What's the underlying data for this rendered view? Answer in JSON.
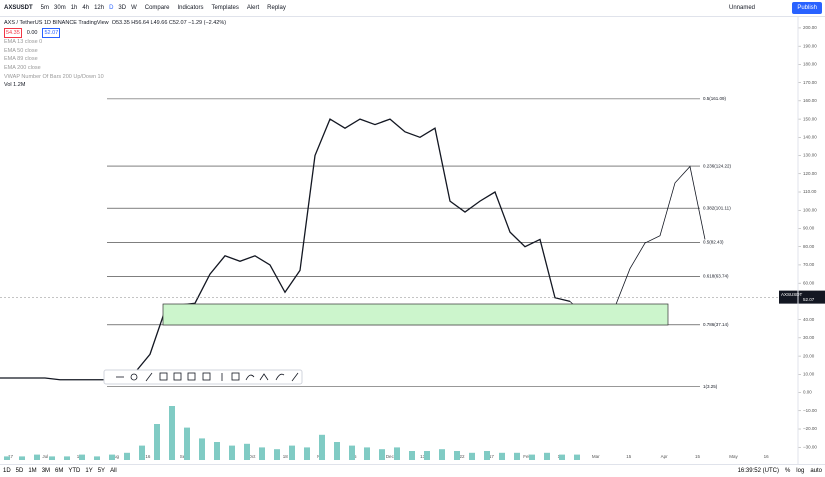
{
  "toolbar": {
    "symbol": "AXSUSDT",
    "intervals": [
      "5m",
      "30m",
      "1h",
      "4h",
      "12h",
      "D",
      "3D",
      "W"
    ],
    "compare": "Compare",
    "indicators": "Indicators",
    "templates": "Templates",
    "alert": "Alert",
    "replay": "Replay",
    "layout": "Unnamed",
    "publish": "Publish"
  },
  "legend": {
    "title": "AXS / TetherUS  1D  BINANCE  TradingView",
    "ohlc": "O53.35 H56.64 L49.66 C52.07 −1.29 (−2.42%)",
    "chips": [
      "54.35",
      "0.00",
      "52.07"
    ],
    "indicators": [
      "EMA 13 close 0",
      "EMA 50 close",
      "EMA 89 close",
      "EMA 200 close",
      "VWAP Number Of Bars 200 Up/Down 10"
    ],
    "volume": "Vol 1.2M"
  },
  "chart_data": {
    "type": "line",
    "ylim": [
      -37,
      206
    ],
    "yticks": [
      {
        "value": 200,
        "label": "200.00"
      },
      {
        "value": 190,
        "label": "190.00"
      },
      {
        "value": 180,
        "label": "180.00"
      },
      {
        "value": 170,
        "label": "170.00"
      },
      {
        "value": 160,
        "label": "160.00"
      },
      {
        "value": 150,
        "label": "150.00"
      },
      {
        "value": 140,
        "label": "140.00"
      },
      {
        "value": 130,
        "label": "130.00"
      },
      {
        "value": 120,
        "label": "120.00"
      },
      {
        "value": 110,
        "label": "110.00"
      },
      {
        "value": 100,
        "label": "100.00"
      },
      {
        "value": 90,
        "label": "90.00"
      },
      {
        "value": 80,
        "label": "80.00"
      },
      {
        "value": 70,
        "label": "70.00"
      },
      {
        "value": 60,
        "label": "60.00"
      },
      {
        "value": 50,
        "label": "50.00"
      },
      {
        "value": 40,
        "label": "40.00"
      },
      {
        "value": 30,
        "label": "30.00"
      },
      {
        "value": 20,
        "label": "20.00"
      },
      {
        "value": 10,
        "label": "10.00"
      },
      {
        "value": 0,
        "label": "0.00"
      },
      {
        "value": -10,
        "label": "−10.00"
      },
      {
        "value": -20,
        "label": "−20.00"
      },
      {
        "value": -30,
        "label": "−30.00"
      }
    ],
    "xlabels": [
      "17",
      "Jul",
      "15",
      "Aug",
      "16",
      "Sep",
      "16",
      "Oct",
      "18",
      "Nov",
      "15",
      "Dec",
      "13",
      "2022",
      "17",
      "Feb",
      "15",
      "Mar",
      "15",
      "Apr",
      "15",
      "May",
      "16"
    ],
    "series": [
      {
        "name": "AXSUSDT",
        "color": "#131722",
        "values": [
          8,
          8,
          8,
          8,
          7,
          7,
          7,
          7,
          7,
          11,
          21,
          45,
          48,
          49,
          65,
          75,
          72,
          75,
          70,
          55,
          67,
          130,
          150,
          145,
          150,
          147,
          150,
          143,
          140,
          145,
          105,
          99,
          105,
          110,
          88,
          80,
          84,
          52,
          50
        ]
      },
      {
        "name": "Projection",
        "color": "#131722",
        "values": [
          50,
          42,
          47,
          47,
          68,
          82,
          86,
          115,
          124,
          84
        ]
      }
    ],
    "volume": {
      "color": "#80cbc4",
      "values": [
        2,
        2,
        3,
        2,
        2,
        3,
        2,
        3,
        4,
        8,
        20,
        30,
        18,
        12,
        10,
        8,
        9,
        7,
        6,
        8,
        7,
        14,
        10,
        8,
        7,
        6,
        7,
        5,
        5,
        6,
        5,
        4,
        5,
        4,
        4,
        3,
        4,
        3,
        3
      ]
    },
    "fib": [
      {
        "label": "0.5(161.09)",
        "value": 161.09
      },
      {
        "label": "0.236(124.22)",
        "value": 124.22
      },
      {
        "label": "0.382(101.11)",
        "value": 101.11
      },
      {
        "label": "0.5(82.43)",
        "value": 82.43
      },
      {
        "label": "0.618(63.74)",
        "value": 63.74
      },
      {
        "label": "0.786(37.14)",
        "value": 37.14
      },
      {
        "label": "1(3.25)",
        "value": 3.25
      }
    ],
    "last_price": {
      "symbol": "AXSUSDT",
      "value": 52.07,
      "label": "52.07"
    }
  },
  "bottom": {
    "ranges": [
      "1D",
      "5D",
      "1M",
      "3M",
      "6M",
      "YTD",
      "1Y",
      "5Y",
      "All"
    ],
    "time": "16:39:52 (UTC)",
    "percent": "%",
    "log": "log",
    "auto": "auto"
  }
}
